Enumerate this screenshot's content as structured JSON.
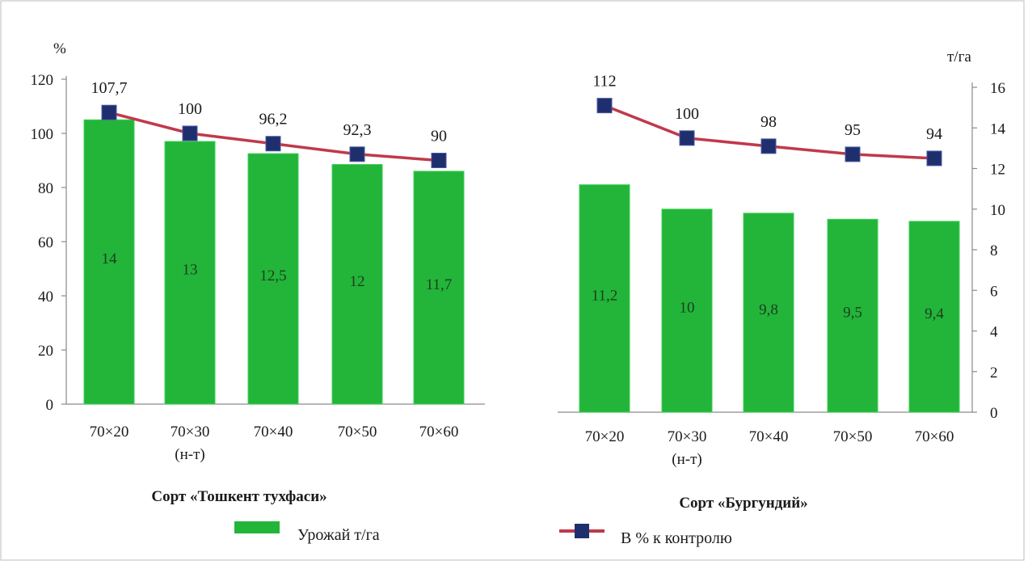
{
  "chart_data": {
    "type": "bar",
    "title": "",
    "y_left": {
      "label": "%",
      "ylim": [
        0,
        120
      ],
      "ticks": [
        0,
        20,
        40,
        60,
        80,
        100,
        120
      ]
    },
    "y_right": {
      "label": "т/га",
      "ylim": [
        0,
        16
      ],
      "ticks": [
        0,
        2,
        4,
        6,
        8,
        10,
        12,
        14,
        16
      ]
    },
    "legend": {
      "position": "bottom",
      "bar_series": "Урожай т/га",
      "line_series": "В % к контролю"
    },
    "colors": {
      "bar": "#22b53a",
      "line": "#c0394b",
      "marker": "#1f2f6e"
    },
    "groups": [
      {
        "name": "Сорт «Тошкент тухфаси»",
        "categories": [
          {
            "line1": "70×20",
            "line2": ""
          },
          {
            "line1": "70×30",
            "line2": "(н-т)"
          },
          {
            "line1": "70×40",
            "line2": ""
          },
          {
            "line1": "70×50",
            "line2": ""
          },
          {
            "line1": "70×60",
            "line2": ""
          }
        ],
        "bar_axis": "left",
        "bar_values": [
          105,
          97,
          92.5,
          88.5,
          86
        ],
        "bar_labels": [
          "14",
          "13",
          "12,5",
          "12",
          "11,7"
        ],
        "line_axis": "left",
        "line_values": [
          107.7,
          100,
          96.2,
          92.3,
          90
        ],
        "line_labels": [
          "107,7",
          "100",
          "96,2",
          "92,3",
          "90"
        ]
      },
      {
        "name": "Сорт «Бургундий»",
        "categories": [
          {
            "line1": "70×20",
            "line2": ""
          },
          {
            "line1": "70×30",
            "line2": "(н-т)"
          },
          {
            "line1": "70×40",
            "line2": ""
          },
          {
            "line1": "70×50",
            "line2": ""
          },
          {
            "line1": "70×60",
            "line2": ""
          }
        ],
        "bar_axis": "right",
        "bar_values": [
          11.2,
          10,
          9.8,
          9.5,
          9.4
        ],
        "bar_labels": [
          "11,2",
          "10",
          "9,8",
          "9,5",
          "9,4"
        ],
        "line_axis": "right",
        "line_values": [
          15.1,
          13.5,
          13.1,
          12.7,
          12.5
        ],
        "line_labels": [
          "112",
          "100",
          "98",
          "95",
          "94"
        ]
      }
    ]
  }
}
